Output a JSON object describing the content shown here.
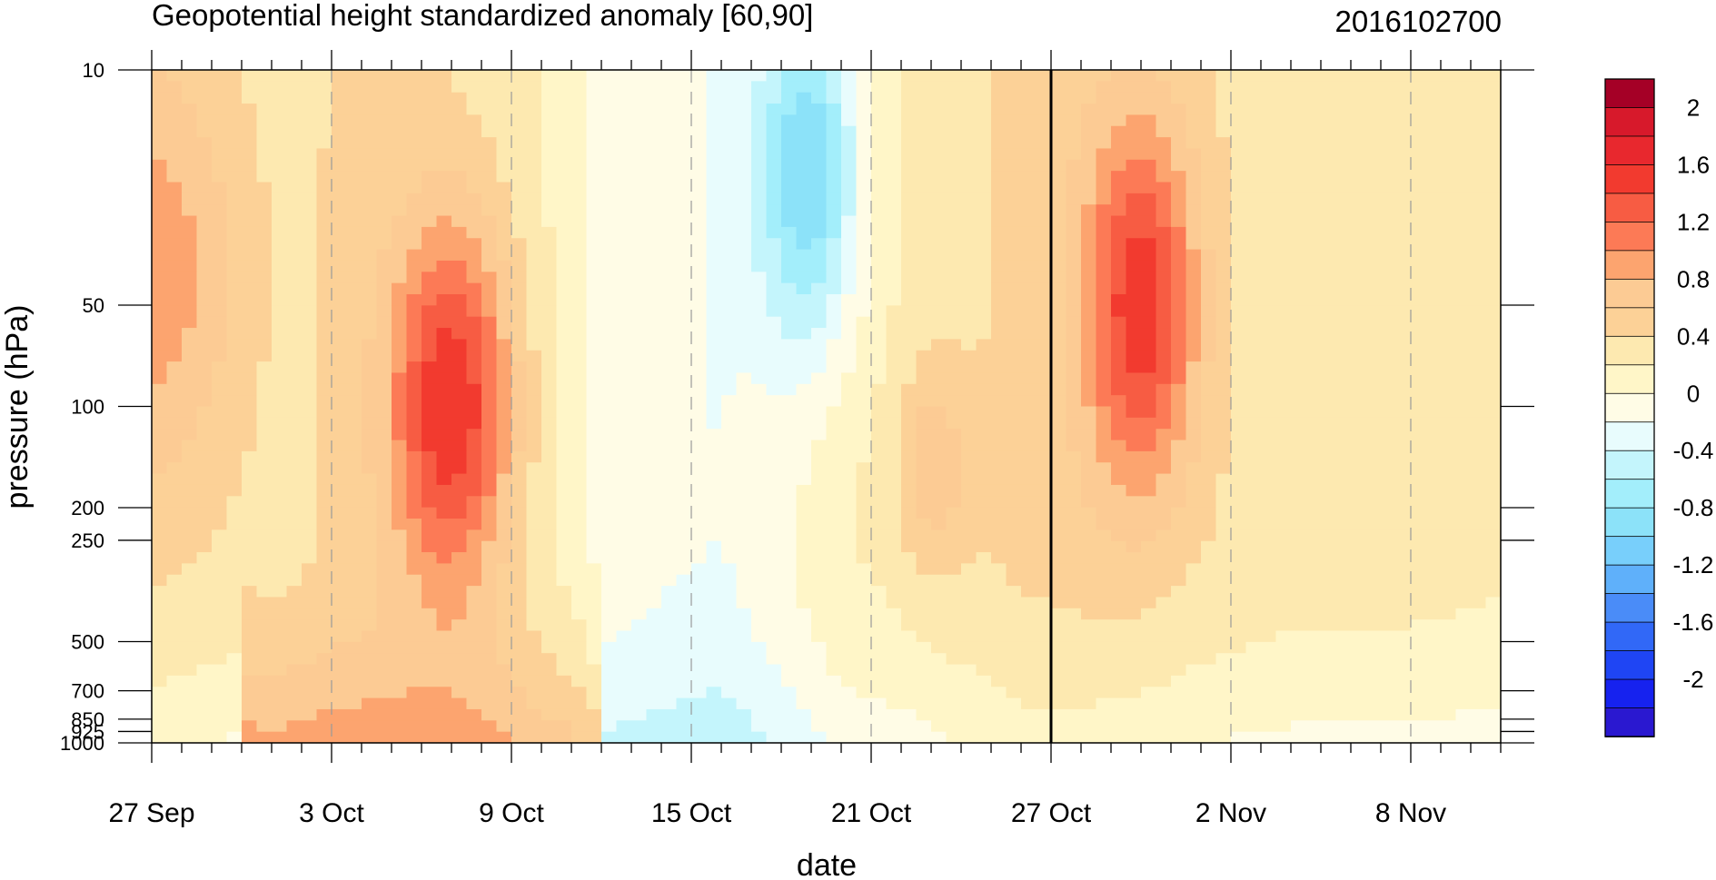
{
  "chart_data": {
    "type": "heatmap",
    "title": "Geopotential height standardized anomaly [60,90]",
    "timestamp": "2016102700",
    "xlabel": "date",
    "ylabel": "pressure (hPa)",
    "x_tick_labels": [
      "27 Sep",
      "3 Oct",
      "9 Oct",
      "15 Oct",
      "21 Oct",
      "27 Oct",
      "2 Nov",
      "8 Nov"
    ],
    "x_range_days": [
      0,
      45
    ],
    "y_scale": "log",
    "y_tick_labels": [
      "10",
      "50",
      "100",
      "200",
      "250",
      "500",
      "700",
      "850",
      "925",
      "1000"
    ],
    "y_tick_values": [
      10,
      50,
      100,
      200,
      250,
      500,
      700,
      850,
      925,
      1000
    ],
    "y_range": [
      10,
      1000
    ],
    "current_date_marker": "27 Oct",
    "colorbar": {
      "labels": [
        "2",
        "1.6",
        "1.2",
        "0.8",
        "0.4",
        "0",
        "-0.4",
        "-0.8",
        "-1.2",
        "-1.6",
        "-2"
      ],
      "levels": [
        2.2,
        2.0,
        1.8,
        1.6,
        1.4,
        1.2,
        1.0,
        0.8,
        0.6,
        0.4,
        0.2,
        0.0,
        -0.2,
        -0.4,
        -0.6,
        -0.8,
        -1.0,
        -1.2,
        -1.4,
        -1.6,
        -1.8,
        -2.0,
        -2.2
      ],
      "colors": [
        "#a50026",
        "#d7192b",
        "#e8282e",
        "#f23a2f",
        "#f75c43",
        "#fc7a56",
        "#fca46f",
        "#fccb94",
        "#fcd197",
        "#fde9b0",
        "#fff6c8",
        "#fffce6",
        "#e8fcfd",
        "#c4f5fc",
        "#a3eefb",
        "#8ce2f9",
        "#78cffb",
        "#5fb0fa",
        "#4a8cf8",
        "#3168f7",
        "#1f45f4",
        "#1622ef",
        "#2a18d0"
      ]
    },
    "anomaly_features": [
      {
        "date": "7 Oct",
        "pressure_hPa": 100,
        "value": 1.7
      },
      {
        "date": "19 Oct",
        "pressure_hPa": 20,
        "value": -0.6
      },
      {
        "date": "30 Oct",
        "pressure_hPa": 50,
        "value": 1.6
      },
      {
        "date": "27 Sep",
        "pressure_hPa": 40,
        "value": 1.0
      },
      {
        "date": "23 Oct",
        "pressure_hPa": 150,
        "value": 0.9
      }
    ]
  }
}
